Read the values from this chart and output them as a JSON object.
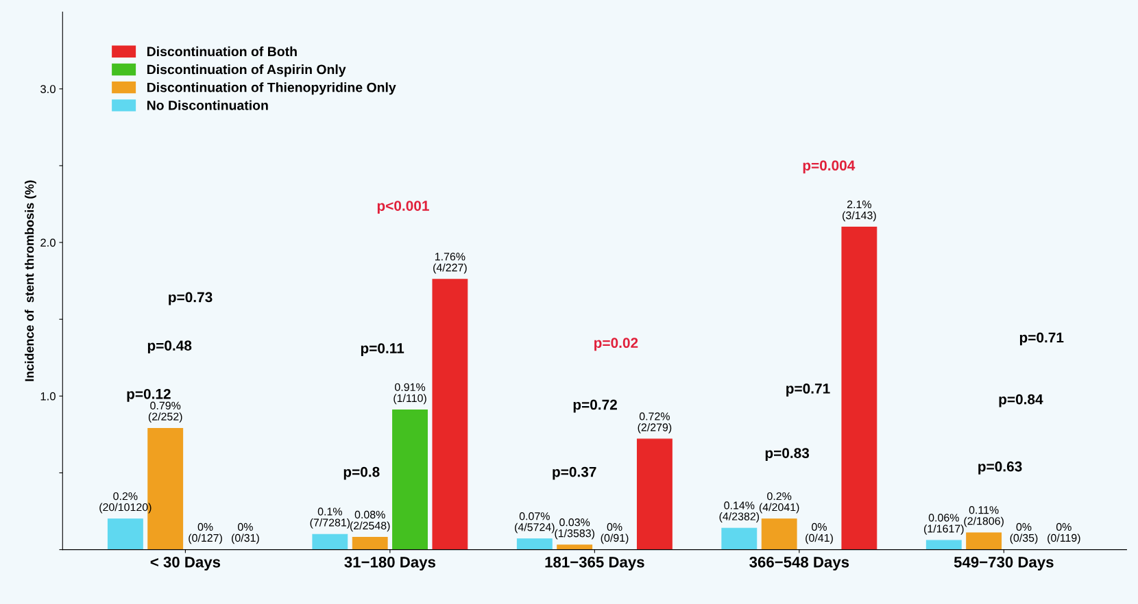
{
  "chart_data": {
    "type": "bar",
    "ylabel": "Incidence of  stent thrombosis (%)",
    "categories": [
      "< 30 Days",
      "31−180 Days",
      "181−365 Days",
      "366−548 Days",
      "549−730 Days"
    ],
    "series": [
      {
        "name": "No Discontinuation",
        "color": "#5fd8f0",
        "values": [
          0.2,
          0.1,
          0.07,
          0.14,
          0.06
        ],
        "value_labels": [
          "0.2%\n(20/10120)",
          "0.1%\n(7/7281)",
          "0.07%\n(4/5724)",
          "0.14%\n(4/2382)",
          "0.06%\n(1/1617)"
        ]
      },
      {
        "name": "Discontinuation of Thienopyridine Only",
        "color": "#f0a020",
        "values": [
          0.79,
          0.08,
          0.03,
          0.2,
          0.11
        ],
        "value_labels": [
          "0.79%\n(2/252)",
          "0.08%\n(2/2548)",
          "0.03%\n(1/3583)",
          "0.2%\n(4/2041)",
          "0.11%\n(2/1806)"
        ]
      },
      {
        "name": "Discontinuation of Aspirin Only",
        "color": "#44c020",
        "values": [
          0,
          0.91,
          0,
          0,
          0
        ],
        "value_labels": [
          "0%\n(0/127)",
          "0.91%\n(1/110)",
          "0%\n(0/91)",
          "0%\n(0/41)",
          "0%\n(0/35)"
        ]
      },
      {
        "name": "Discontinuation of Both",
        "color": "#e82828",
        "values": [
          0,
          1.76,
          0.72,
          2.1,
          0
        ],
        "value_labels": [
          "0%\n(0/31)",
          "1.76%\n(4/227)",
          "0.72%\n(2/279)",
          "2.1%\n(3/143)",
          "0%\n(0/119)"
        ]
      }
    ],
    "ylim": [
      0,
      3.5
    ],
    "yticks": [
      {
        "value": 0,
        "label": null
      },
      {
        "value": 0.5,
        "label": null
      },
      {
        "value": 1,
        "label": "1.0"
      },
      {
        "value": 1.5,
        "label": null
      },
      {
        "value": 2,
        "label": "2.0"
      },
      {
        "value": 2.5,
        "label": null
      },
      {
        "value": 3,
        "label": "3.0"
      }
    ],
    "legend": "top left",
    "grid": false,
    "annotations": [
      "p=0.12",
      "p=0.48",
      "p=0.73",
      "p=0.8",
      "p=0.11",
      "p<0.001",
      "p=0.37",
      "p=0.72",
      "p=0.02",
      "p=0.83",
      "p=0.71",
      "p=0.004",
      "p=0.63",
      "p=0.84",
      "p=0.71"
    ]
  }
}
